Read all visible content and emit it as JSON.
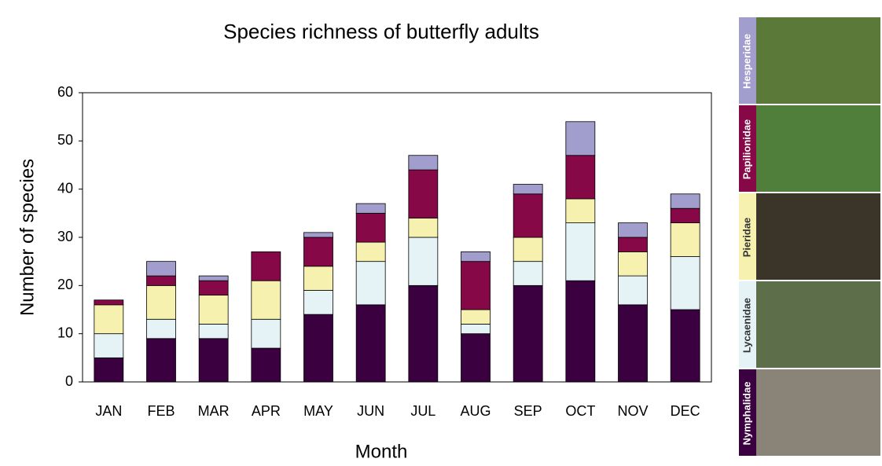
{
  "chart_data": {
    "type": "stacked_bar",
    "title": "Species richness of butterfly adults",
    "x_label": "Month",
    "y_label": "Number of species",
    "categories": [
      "JAN",
      "FEB",
      "MAR",
      "APR",
      "MAY",
      "JUN",
      "JUL",
      "AUG",
      "SEP",
      "OCT",
      "NOV",
      "DEC"
    ],
    "series": [
      {
        "name": "Nymphalidae",
        "color": "#3b0040",
        "values": [
          5,
          9,
          9,
          7,
          14,
          16,
          20,
          10,
          20,
          21,
          16,
          15
        ]
      },
      {
        "name": "Lycaenidae",
        "color": "#e6f3f6",
        "values": [
          5,
          4,
          3,
          6,
          5,
          9,
          10,
          2,
          5,
          12,
          6,
          11
        ]
      },
      {
        "name": "Pieridae",
        "color": "#f6f1ae",
        "values": [
          6,
          7,
          6,
          8,
          5,
          4,
          4,
          3,
          5,
          5,
          5,
          7
        ]
      },
      {
        "name": "Papilionidae",
        "color": "#860846",
        "values": [
          1,
          2,
          3,
          6,
          6,
          6,
          10,
          10,
          9,
          9,
          3,
          3
        ]
      },
      {
        "name": "Hesperidae",
        "color": "#a19dcc",
        "values": [
          0,
          3,
          1,
          0,
          1,
          2,
          3,
          2,
          2,
          7,
          3,
          3
        ]
      }
    ],
    "ylim": [
      0,
      60
    ],
    "yticks": [
      0,
      10,
      20,
      30,
      40,
      50,
      60
    ],
    "grid": false
  }
}
